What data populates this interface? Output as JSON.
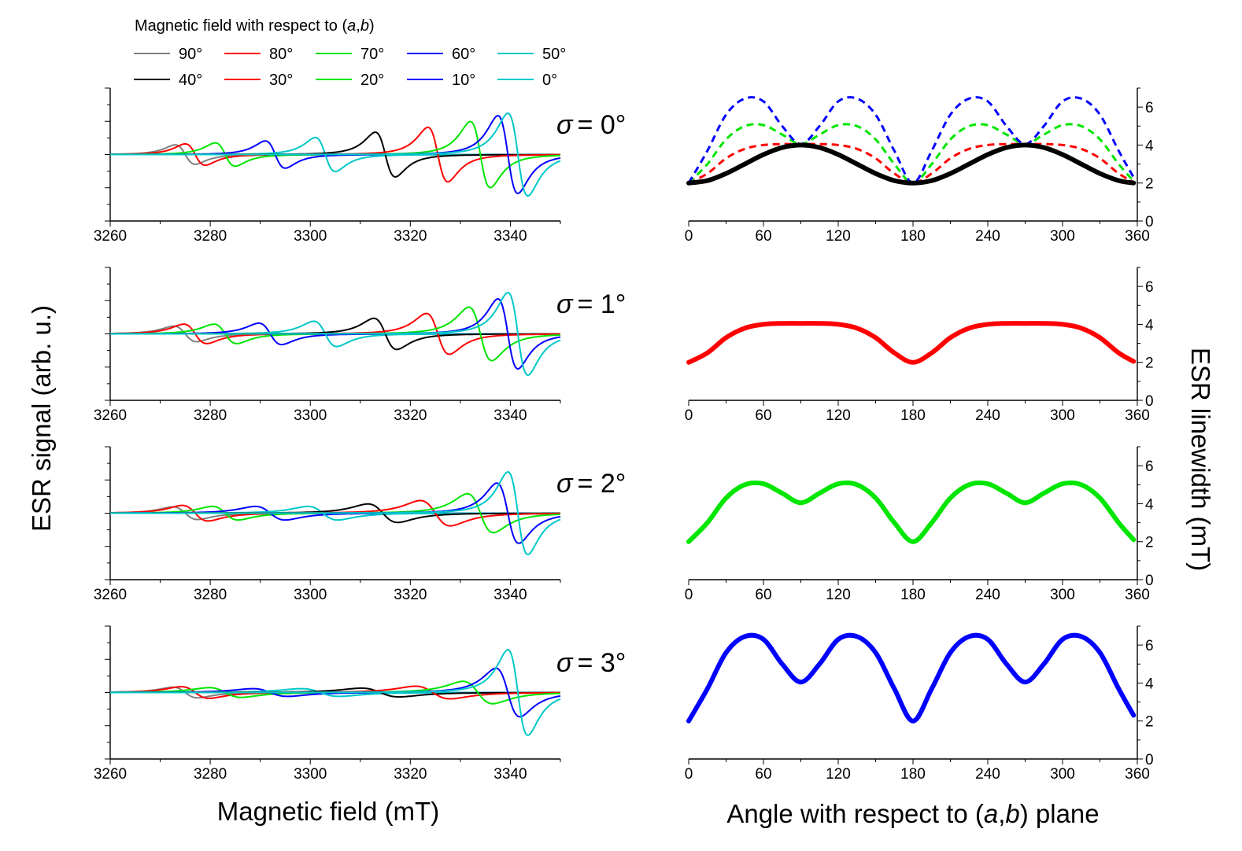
{
  "legend": {
    "title_prefix": "Magnetic field with respect to (",
    "title_a": "a",
    "title_sep": ",",
    "title_b": "b",
    "title_suffix": ")",
    "entries": [
      {
        "label": "90°",
        "color": "#808080"
      },
      {
        "label": "80°",
        "color": "#ff0000"
      },
      {
        "label": "70°",
        "color": "#00e600"
      },
      {
        "label": "60°",
        "color": "#0000ff"
      },
      {
        "label": "50°",
        "color": "#00c8c8"
      },
      {
        "label": "40°",
        "color": "#000000"
      },
      {
        "label": "30°",
        "color": "#ff0000"
      },
      {
        "label": "20°",
        "color": "#00e600"
      },
      {
        "label": "10°",
        "color": "#0000ff"
      },
      {
        "label": "0°",
        "color": "#00c8c8"
      }
    ]
  },
  "labels": {
    "left_ylabel": "ESR signal (arb. u.)",
    "left_xlabel": "Magnetic field (mT)",
    "right_ylabel": "ESR linewidth (mT)",
    "right_xlabel_prefix": "Angle with respect to (",
    "right_xlabel_a": "a",
    "right_xlabel_sep": ",",
    "right_xlabel_b": "b",
    "right_xlabel_suffix": ") plane",
    "sigma_symbol": "σ",
    "sigma_values": [
      "= 0°",
      "= 1°",
      "= 2°",
      "= 3°"
    ]
  },
  "chart_data": [
    {
      "type": "line",
      "panel": "spectra",
      "sigma": "0°",
      "xlim": [
        3260,
        3350
      ],
      "xticks": [
        3260,
        3280,
        3300,
        3320,
        3340
      ],
      "series": [
        {
          "name": "90°",
          "color": "#808080",
          "center": 3275.0,
          "width": 2.0,
          "amplitude": 0.2
        },
        {
          "name": "80°",
          "color": "#ff0000",
          "center": 3277.0,
          "width": 2.0,
          "amplitude": 0.22
        },
        {
          "name": "70°",
          "color": "#00e600",
          "center": 3283.0,
          "width": 2.0,
          "amplitude": 0.24
        },
        {
          "name": "60°",
          "color": "#0000ff",
          "center": 3293.0,
          "width": 2.0,
          "amplitude": 0.28
        },
        {
          "name": "50°",
          "color": "#00c8c8",
          "center": 3303.0,
          "width": 2.0,
          "amplitude": 0.35
        },
        {
          "name": "40°",
          "color": "#000000",
          "center": 3315.0,
          "width": 2.0,
          "amplitude": 0.46
        },
        {
          "name": "30°",
          "color": "#ff0000",
          "center": 3325.5,
          "width": 2.0,
          "amplitude": 0.56
        },
        {
          "name": "20°",
          "color": "#00e600",
          "center": 3334.0,
          "width": 2.0,
          "amplitude": 0.68
        },
        {
          "name": "10°",
          "color": "#0000ff",
          "center": 3339.5,
          "width": 2.0,
          "amplitude": 0.8
        },
        {
          "name": "0°",
          "color": "#00c8c8",
          "center": 3341.5,
          "width": 2.0,
          "amplitude": 0.85
        }
      ]
    },
    {
      "type": "line",
      "panel": "spectra",
      "sigma": "1°",
      "xlim": [
        3260,
        3350
      ],
      "xticks": [
        3260,
        3280,
        3300,
        3320,
        3340
      ],
      "series": [
        {
          "name": "90°",
          "color": "#808080",
          "center": 3275.0,
          "width": 2.3,
          "amplitude": 0.16
        },
        {
          "name": "80°",
          "color": "#ff0000",
          "center": 3277.0,
          "width": 2.3,
          "amplitude": 0.2
        },
        {
          "name": "70°",
          "color": "#00e600",
          "center": 3283.0,
          "width": 2.3,
          "amplitude": 0.2
        },
        {
          "name": "60°",
          "color": "#0000ff",
          "center": 3292.0,
          "width": 2.3,
          "amplitude": 0.22
        },
        {
          "name": "50°",
          "color": "#00c8c8",
          "center": 3303.0,
          "width": 2.3,
          "amplitude": 0.26
        },
        {
          "name": "40°",
          "color": "#000000",
          "center": 3315.0,
          "width": 2.3,
          "amplitude": 0.32
        },
        {
          "name": "30°",
          "color": "#ff0000",
          "center": 3325.5,
          "width": 2.3,
          "amplitude": 0.42
        },
        {
          "name": "20°",
          "color": "#00e600",
          "center": 3334.0,
          "width": 2.3,
          "amplitude": 0.55
        },
        {
          "name": "10°",
          "color": "#0000ff",
          "center": 3339.5,
          "width": 2.0,
          "amplitude": 0.72
        },
        {
          "name": "0°",
          "color": "#00c8c8",
          "center": 3341.5,
          "width": 2.0,
          "amplitude": 0.85
        }
      ]
    },
    {
      "type": "line",
      "panel": "spectra",
      "sigma": "2°",
      "xlim": [
        3260,
        3350
      ],
      "xticks": [
        3260,
        3280,
        3300,
        3320,
        3340
      ],
      "series": [
        {
          "name": "90°",
          "color": "#808080",
          "center": 3275.0,
          "width": 2.5,
          "amplitude": 0.13
        },
        {
          "name": "80°",
          "color": "#ff0000",
          "center": 3277.0,
          "width": 2.6,
          "amplitude": 0.16
        },
        {
          "name": "70°",
          "color": "#00e600",
          "center": 3283.0,
          "width": 2.6,
          "amplitude": 0.14
        },
        {
          "name": "60°",
          "color": "#0000ff",
          "center": 3292.0,
          "width": 3.0,
          "amplitude": 0.14
        },
        {
          "name": "50°",
          "color": "#00c8c8",
          "center": 3302.5,
          "width": 3.0,
          "amplitude": 0.14
        },
        {
          "name": "40°",
          "color": "#000000",
          "center": 3314.5,
          "width": 3.0,
          "amplitude": 0.19
        },
        {
          "name": "30°",
          "color": "#ff0000",
          "center": 3325.0,
          "width": 3.0,
          "amplitude": 0.26
        },
        {
          "name": "20°",
          "color": "#00e600",
          "center": 3334.0,
          "width": 2.6,
          "amplitude": 0.4
        },
        {
          "name": "10°",
          "color": "#0000ff",
          "center": 3339.5,
          "width": 2.2,
          "amplitude": 0.62
        },
        {
          "name": "0°",
          "color": "#00c8c8",
          "center": 3341.5,
          "width": 2.0,
          "amplitude": 0.85
        }
      ]
    },
    {
      "type": "line",
      "panel": "spectra",
      "sigma": "3°",
      "xlim": [
        3260,
        3350
      ],
      "xticks": [
        3260,
        3280,
        3300,
        3320,
        3340
      ],
      "series": [
        {
          "name": "90°",
          "color": "#808080",
          "center": 3275.0,
          "width": 2.5,
          "amplitude": 0.11
        },
        {
          "name": "80°",
          "color": "#ff0000",
          "center": 3277.0,
          "width": 2.8,
          "amplitude": 0.12
        },
        {
          "name": "70°",
          "color": "#00e600",
          "center": 3283.0,
          "width": 3.2,
          "amplitude": 0.1
        },
        {
          "name": "60°",
          "color": "#0000ff",
          "center": 3292.0,
          "width": 3.5,
          "amplitude": 0.08
        },
        {
          "name": "50°",
          "color": "#00c8c8",
          "center": 3302.0,
          "width": 3.8,
          "amplitude": 0.08
        },
        {
          "name": "40°",
          "color": "#000000",
          "center": 3314.0,
          "width": 3.8,
          "amplitude": 0.09
        },
        {
          "name": "30°",
          "color": "#ff0000",
          "center": 3324.5,
          "width": 3.5,
          "amplitude": 0.13
        },
        {
          "name": "20°",
          "color": "#00e600",
          "center": 3333.5,
          "width": 3.0,
          "amplitude": 0.23
        },
        {
          "name": "10°",
          "color": "#0000ff",
          "center": 3339.5,
          "width": 2.4,
          "amplitude": 0.5
        },
        {
          "name": "0°",
          "color": "#00c8c8",
          "center": 3341.5,
          "width": 2.0,
          "amplitude": 0.88
        }
      ]
    },
    {
      "type": "line",
      "panel": "linewidth",
      "sigma": "0°",
      "xlim": [
        0,
        360
      ],
      "ylim": [
        0,
        7
      ],
      "xticks": [
        0,
        60,
        120,
        180,
        240,
        300,
        360
      ],
      "yticks": [
        0,
        2,
        4,
        6
      ],
      "x": [
        0,
        15,
        30,
        45,
        60,
        75,
        90,
        105,
        120,
        135,
        150,
        165,
        180,
        195,
        210,
        225,
        240,
        255,
        270,
        285,
        300,
        315,
        330,
        345,
        357
      ],
      "series": [
        {
          "name": "σ = 0°",
          "color": "#000000",
          "style": "solid",
          "values": [
            2.0,
            2.13,
            2.5,
            3.0,
            3.5,
            3.87,
            4.0,
            3.87,
            3.5,
            3.0,
            2.5,
            2.13,
            2.0,
            2.13,
            2.5,
            3.0,
            3.5,
            3.87,
            4.0,
            3.87,
            3.5,
            3.0,
            2.5,
            2.13,
            2.0
          ]
        },
        {
          "name": "σ = 1°",
          "color": "#ff0000",
          "style": "dashed",
          "values": [
            2.0,
            2.5,
            3.3,
            3.8,
            4.0,
            4.05,
            4.05,
            4.05,
            4.0,
            3.8,
            3.3,
            2.5,
            2.0,
            2.5,
            3.3,
            3.8,
            4.0,
            4.05,
            4.05,
            4.05,
            4.0,
            3.8,
            3.3,
            2.5,
            2.05
          ]
        },
        {
          "name": "σ = 2°",
          "color": "#00e600",
          "style": "dashed",
          "values": [
            2.0,
            3.0,
            4.3,
            5.0,
            5.05,
            4.55,
            4.05,
            4.55,
            5.05,
            5.0,
            4.3,
            3.0,
            2.0,
            3.0,
            4.3,
            5.0,
            5.05,
            4.55,
            4.05,
            4.55,
            5.05,
            5.0,
            4.3,
            3.0,
            2.1
          ]
        },
        {
          "name": "σ = 3°",
          "color": "#0000ff",
          "style": "dashed",
          "values": [
            2.0,
            3.7,
            5.6,
            6.45,
            6.3,
            5.0,
            4.05,
            5.0,
            6.3,
            6.45,
            5.6,
            3.7,
            2.0,
            3.7,
            5.6,
            6.45,
            6.3,
            5.0,
            4.05,
            5.0,
            6.3,
            6.45,
            5.6,
            3.7,
            2.3
          ]
        }
      ]
    },
    {
      "type": "line",
      "panel": "linewidth",
      "sigma": "1°",
      "xlim": [
        0,
        360
      ],
      "ylim": [
        0,
        7
      ],
      "xticks": [
        0,
        60,
        120,
        180,
        240,
        300,
        360
      ],
      "yticks": [
        0,
        2,
        4,
        6
      ],
      "x": [
        0,
        15,
        30,
        45,
        60,
        75,
        90,
        105,
        120,
        135,
        150,
        165,
        180,
        195,
        210,
        225,
        240,
        255,
        270,
        285,
        300,
        315,
        330,
        345,
        357
      ],
      "series": [
        {
          "name": "σ = 1°",
          "color": "#ff0000",
          "style": "solid",
          "values": [
            2.0,
            2.5,
            3.3,
            3.8,
            4.0,
            4.05,
            4.05,
            4.05,
            4.0,
            3.8,
            3.3,
            2.5,
            2.0,
            2.5,
            3.3,
            3.8,
            4.0,
            4.05,
            4.05,
            4.05,
            4.0,
            3.8,
            3.3,
            2.5,
            2.05
          ]
        }
      ]
    },
    {
      "type": "line",
      "panel": "linewidth",
      "sigma": "2°",
      "xlim": [
        0,
        360
      ],
      "ylim": [
        0,
        7
      ],
      "xticks": [
        0,
        60,
        120,
        180,
        240,
        300,
        360
      ],
      "yticks": [
        0,
        2,
        4,
        6
      ],
      "x": [
        0,
        15,
        30,
        45,
        60,
        75,
        90,
        105,
        120,
        135,
        150,
        165,
        180,
        195,
        210,
        225,
        240,
        255,
        270,
        285,
        300,
        315,
        330,
        345,
        357
      ],
      "series": [
        {
          "name": "σ = 2°",
          "color": "#00e600",
          "style": "solid",
          "values": [
            2.0,
            3.0,
            4.3,
            5.0,
            5.05,
            4.55,
            4.05,
            4.55,
            5.05,
            5.0,
            4.3,
            3.0,
            2.0,
            3.0,
            4.3,
            5.0,
            5.05,
            4.55,
            4.05,
            4.55,
            5.05,
            5.0,
            4.3,
            3.0,
            2.1
          ]
        }
      ]
    },
    {
      "type": "line",
      "panel": "linewidth",
      "sigma": "3°",
      "xlim": [
        0,
        360
      ],
      "ylim": [
        0,
        7
      ],
      "xticks": [
        0,
        60,
        120,
        180,
        240,
        300,
        360
      ],
      "yticks": [
        0,
        2,
        4,
        6
      ],
      "x": [
        0,
        15,
        30,
        45,
        60,
        75,
        90,
        105,
        120,
        135,
        150,
        165,
        180,
        195,
        210,
        225,
        240,
        255,
        270,
        285,
        300,
        315,
        330,
        345,
        357
      ],
      "series": [
        {
          "name": "σ = 3°",
          "color": "#0000ff",
          "style": "solid",
          "values": [
            2.0,
            3.7,
            5.6,
            6.45,
            6.3,
            5.0,
            4.05,
            5.0,
            6.3,
            6.45,
            5.6,
            3.7,
            2.0,
            3.7,
            5.6,
            6.45,
            6.3,
            5.0,
            4.05,
            5.0,
            6.3,
            6.45,
            5.6,
            3.7,
            2.3
          ]
        }
      ]
    }
  ]
}
